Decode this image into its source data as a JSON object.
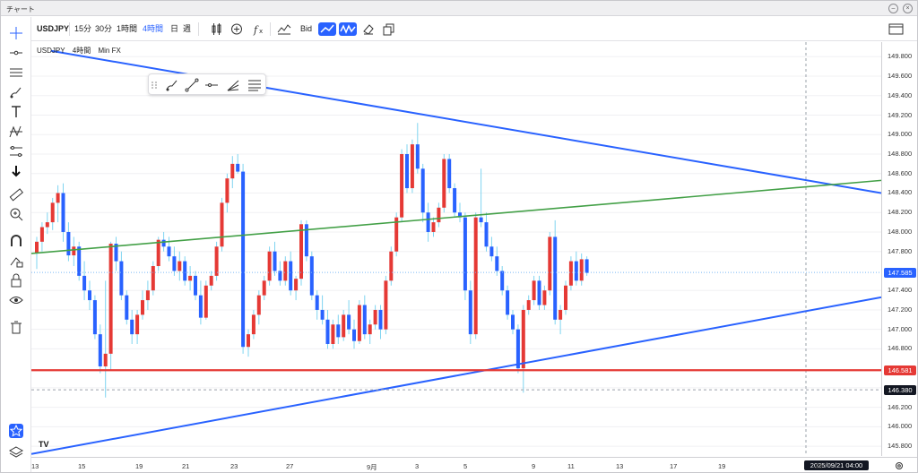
{
  "window": {
    "title": "チャート",
    "min": "–",
    "close": "×"
  },
  "toolbar": {
    "symbol": "USDJPY",
    "intervals": [
      "15分",
      "30分",
      "1時間",
      "4時間",
      "日",
      "週"
    ],
    "active_interval": "4時間",
    "price_source": "Bid"
  },
  "legend": {
    "symbol": "USDJPY",
    "interval": "4時間",
    "broker": "Min FX"
  },
  "price_axis": {
    "ticks": [
      "149.800",
      "149.600",
      "149.400",
      "149.200",
      "149.000",
      "148.800",
      "148.600",
      "148.400",
      "148.200",
      "148.000",
      "147.800",
      "147.400",
      "147.200",
      "147.000",
      "146.800",
      "146.400",
      "146.200",
      "146.000",
      "145.800"
    ],
    "current_price": "147.585",
    "red_level": "146.581",
    "crosshair_price": "146.380",
    "colors": {
      "current": "#2962ff",
      "red": "#e53935",
      "crosshair": "#131722"
    }
  },
  "time_axis": {
    "labels": [
      "13",
      "15",
      "19",
      "21",
      "23",
      "27",
      "9月",
      "3",
      "5",
      "9",
      "11",
      "13",
      "17",
      "19",
      "23"
    ],
    "crosshair_time": "2025/09/21  04:00"
  },
  "colors": {
    "up": "#e53935",
    "down": "#2962ff",
    "wick_light": "#7fd4f0",
    "trend_blue": "#2962ff",
    "trend_green": "#43a047",
    "support_red": "#e53935"
  },
  "left_tools": [
    "crosshair-icon",
    "horizontal-line-icon",
    "fib-icon",
    "brush-icon",
    "text-icon",
    "pattern-icon",
    "measure-lines-icon",
    "arrow-down-icon",
    "ruler-icon",
    "zoom-icon",
    "magnet-icon",
    "lock-drawing-icon",
    "lock-icon",
    "eye-icon",
    "trash-icon",
    "star-icon",
    "layers-icon"
  ],
  "floating_tools": [
    "drag-handle-icon",
    "brush-icon",
    "trendline-icon",
    "horizontal-ray-icon",
    "pitchfork-icon",
    "fib-lines-icon"
  ],
  "chart_data": {
    "type": "candlestick",
    "title": "",
    "ylim": [
      145.7,
      149.95
    ],
    "candles": [
      [
        147.78,
        147.95,
        147.62,
        147.9
      ],
      [
        147.9,
        148.1,
        147.8,
        148.05
      ],
      [
        148.05,
        148.2,
        147.98,
        148.1
      ],
      [
        148.1,
        148.35,
        148.02,
        148.3
      ],
      [
        148.3,
        148.48,
        148.1,
        148.4
      ],
      [
        148.4,
        148.5,
        147.9,
        148.0
      ],
      [
        148.0,
        148.1,
        147.7,
        147.76
      ],
      [
        147.76,
        147.95,
        147.65,
        147.85
      ],
      [
        147.85,
        147.9,
        147.5,
        147.55
      ],
      [
        147.55,
        147.7,
        147.3,
        147.4
      ],
      [
        147.4,
        147.5,
        147.2,
        147.3
      ],
      [
        147.3,
        147.35,
        146.9,
        146.95
      ],
      [
        146.95,
        147.05,
        146.55,
        146.62
      ],
      [
        146.62,
        147.5,
        146.3,
        146.75
      ],
      [
        146.75,
        147.9,
        146.58,
        147.88
      ],
      [
        147.88,
        147.95,
        147.6,
        147.7
      ],
      [
        147.7,
        147.8,
        147.3,
        147.35
      ],
      [
        147.35,
        147.4,
        147.05,
        147.1
      ],
      [
        147.1,
        147.2,
        146.85,
        146.95
      ],
      [
        146.95,
        147.2,
        146.85,
        147.15
      ],
      [
        147.15,
        147.4,
        147.1,
        147.3
      ],
      [
        147.3,
        147.5,
        147.2,
        147.4
      ],
      [
        147.4,
        147.7,
        147.35,
        147.65
      ],
      [
        147.65,
        147.95,
        147.6,
        147.92
      ],
      [
        147.92,
        148.0,
        147.8,
        147.85
      ],
      [
        147.85,
        147.95,
        147.7,
        147.75
      ],
      [
        147.75,
        147.85,
        147.55,
        147.6
      ],
      [
        147.6,
        147.8,
        147.5,
        147.7
      ],
      [
        147.7,
        147.75,
        147.45,
        147.5
      ],
      [
        147.5,
        147.65,
        147.4,
        147.55
      ],
      [
        147.55,
        147.6,
        147.3,
        147.35
      ],
      [
        147.35,
        147.5,
        147.05,
        147.12
      ],
      [
        147.12,
        147.5,
        147.1,
        147.45
      ],
      [
        147.45,
        147.6,
        147.4,
        147.55
      ],
      [
        147.55,
        147.9,
        147.5,
        147.85
      ],
      [
        147.85,
        148.35,
        147.8,
        148.3
      ],
      [
        148.3,
        148.6,
        148.2,
        148.55
      ],
      [
        148.55,
        148.78,
        148.45,
        148.7
      ],
      [
        148.7,
        148.8,
        148.6,
        148.62
      ],
      [
        148.62,
        148.7,
        146.75,
        146.82
      ],
      [
        146.82,
        147.0,
        146.72,
        146.95
      ],
      [
        146.95,
        147.2,
        146.9,
        147.15
      ],
      [
        147.15,
        147.4,
        147.05,
        147.35
      ],
      [
        147.35,
        147.55,
        147.3,
        147.5
      ],
      [
        147.5,
        147.85,
        147.45,
        147.8
      ],
      [
        147.8,
        147.9,
        147.55,
        147.6
      ],
      [
        147.6,
        147.7,
        147.45,
        147.5
      ],
      [
        147.5,
        147.75,
        147.45,
        147.7
      ],
      [
        147.7,
        147.8,
        147.35,
        147.4
      ],
      [
        147.4,
        147.55,
        147.3,
        147.52
      ],
      [
        147.52,
        148.12,
        147.45,
        148.08
      ],
      [
        148.08,
        148.12,
        147.7,
        147.75
      ],
      [
        147.75,
        147.8,
        147.3,
        147.35
      ],
      [
        147.35,
        147.4,
        147.1,
        147.2
      ],
      [
        147.2,
        147.35,
        147.05,
        147.1
      ],
      [
        147.1,
        147.2,
        146.8,
        146.85
      ],
      [
        146.85,
        147.1,
        146.8,
        147.05
      ],
      [
        147.05,
        147.15,
        146.85,
        146.92
      ],
      [
        146.92,
        147.2,
        146.88,
        147.15
      ],
      [
        147.15,
        147.3,
        146.95,
        147.0
      ],
      [
        147.0,
        147.1,
        146.8,
        146.88
      ],
      [
        146.88,
        147.3,
        146.85,
        147.25
      ],
      [
        147.25,
        147.35,
        146.9,
        146.95
      ],
      [
        146.95,
        147.1,
        146.85,
        147.05
      ],
      [
        147.05,
        147.25,
        147.0,
        147.2
      ],
      [
        147.2,
        147.25,
        146.9,
        147.0
      ],
      [
        147.0,
        147.55,
        146.95,
        147.5
      ],
      [
        147.5,
        147.85,
        147.45,
        147.8
      ],
      [
        147.8,
        148.2,
        147.75,
        148.15
      ],
      [
        148.15,
        148.85,
        148.1,
        148.8
      ],
      [
        148.8,
        148.9,
        148.4,
        148.45
      ],
      [
        148.45,
        148.95,
        148.4,
        148.9
      ],
      [
        148.9,
        149.12,
        148.6,
        148.65
      ],
      [
        148.65,
        148.7,
        148.1,
        148.2
      ],
      [
        148.2,
        148.3,
        147.9,
        148.0
      ],
      [
        148.0,
        148.15,
        147.95,
        148.1
      ],
      [
        148.1,
        148.3,
        148.05,
        148.25
      ],
      [
        148.25,
        148.8,
        148.2,
        148.75
      ],
      [
        148.75,
        148.8,
        148.4,
        148.45
      ],
      [
        148.45,
        148.5,
        148.15,
        148.2
      ],
      [
        148.2,
        148.3,
        148.1,
        148.15
      ],
      [
        148.15,
        148.2,
        147.3,
        147.4
      ],
      [
        147.4,
        147.5,
        146.85,
        146.95
      ],
      [
        146.95,
        148.2,
        146.9,
        148.15
      ],
      [
        148.15,
        148.65,
        148.05,
        148.1
      ],
      [
        148.1,
        148.2,
        147.8,
        147.85
      ],
      [
        147.85,
        147.95,
        147.7,
        147.75
      ],
      [
        147.75,
        147.85,
        147.55,
        147.6
      ],
      [
        147.6,
        147.65,
        147.35,
        147.4
      ],
      [
        147.4,
        147.45,
        147.1,
        147.15
      ],
      [
        147.15,
        147.2,
        146.95,
        147.0
      ],
      [
        147.0,
        147.05,
        146.55,
        146.6
      ],
      [
        146.6,
        147.25,
        146.35,
        147.2
      ],
      [
        147.2,
        147.35,
        147.15,
        147.3
      ],
      [
        147.3,
        147.55,
        147.25,
        147.5
      ],
      [
        147.5,
        147.55,
        147.2,
        147.25
      ],
      [
        147.25,
        147.45,
        147.2,
        147.4
      ],
      [
        147.4,
        148.0,
        147.35,
        147.95
      ],
      [
        147.95,
        148.12,
        147.05,
        147.1
      ],
      [
        147.1,
        147.25,
        146.95,
        147.2
      ],
      [
        147.2,
        147.5,
        147.15,
        147.45
      ],
      [
        147.45,
        147.75,
        147.4,
        147.7
      ],
      [
        147.7,
        147.8,
        147.45,
        147.5
      ],
      [
        147.5,
        147.78,
        147.45,
        147.72
      ],
      [
        147.72,
        147.75,
        147.55,
        147.58
      ]
    ],
    "trendlines": [
      {
        "color": "#2962ff",
        "from": [
          "13",
          149.86
        ],
        "to": [
          "23",
          148.4
        ]
      },
      {
        "color": "#43a047",
        "from": [
          "13",
          147.78
        ],
        "to": [
          "23",
          148.53
        ]
      },
      {
        "color": "#2962ff",
        "from": [
          "13",
          145.72
        ],
        "to": [
          "23",
          147.33
        ]
      },
      {
        "color": "#e53935",
        "price": 146.581
      }
    ]
  }
}
